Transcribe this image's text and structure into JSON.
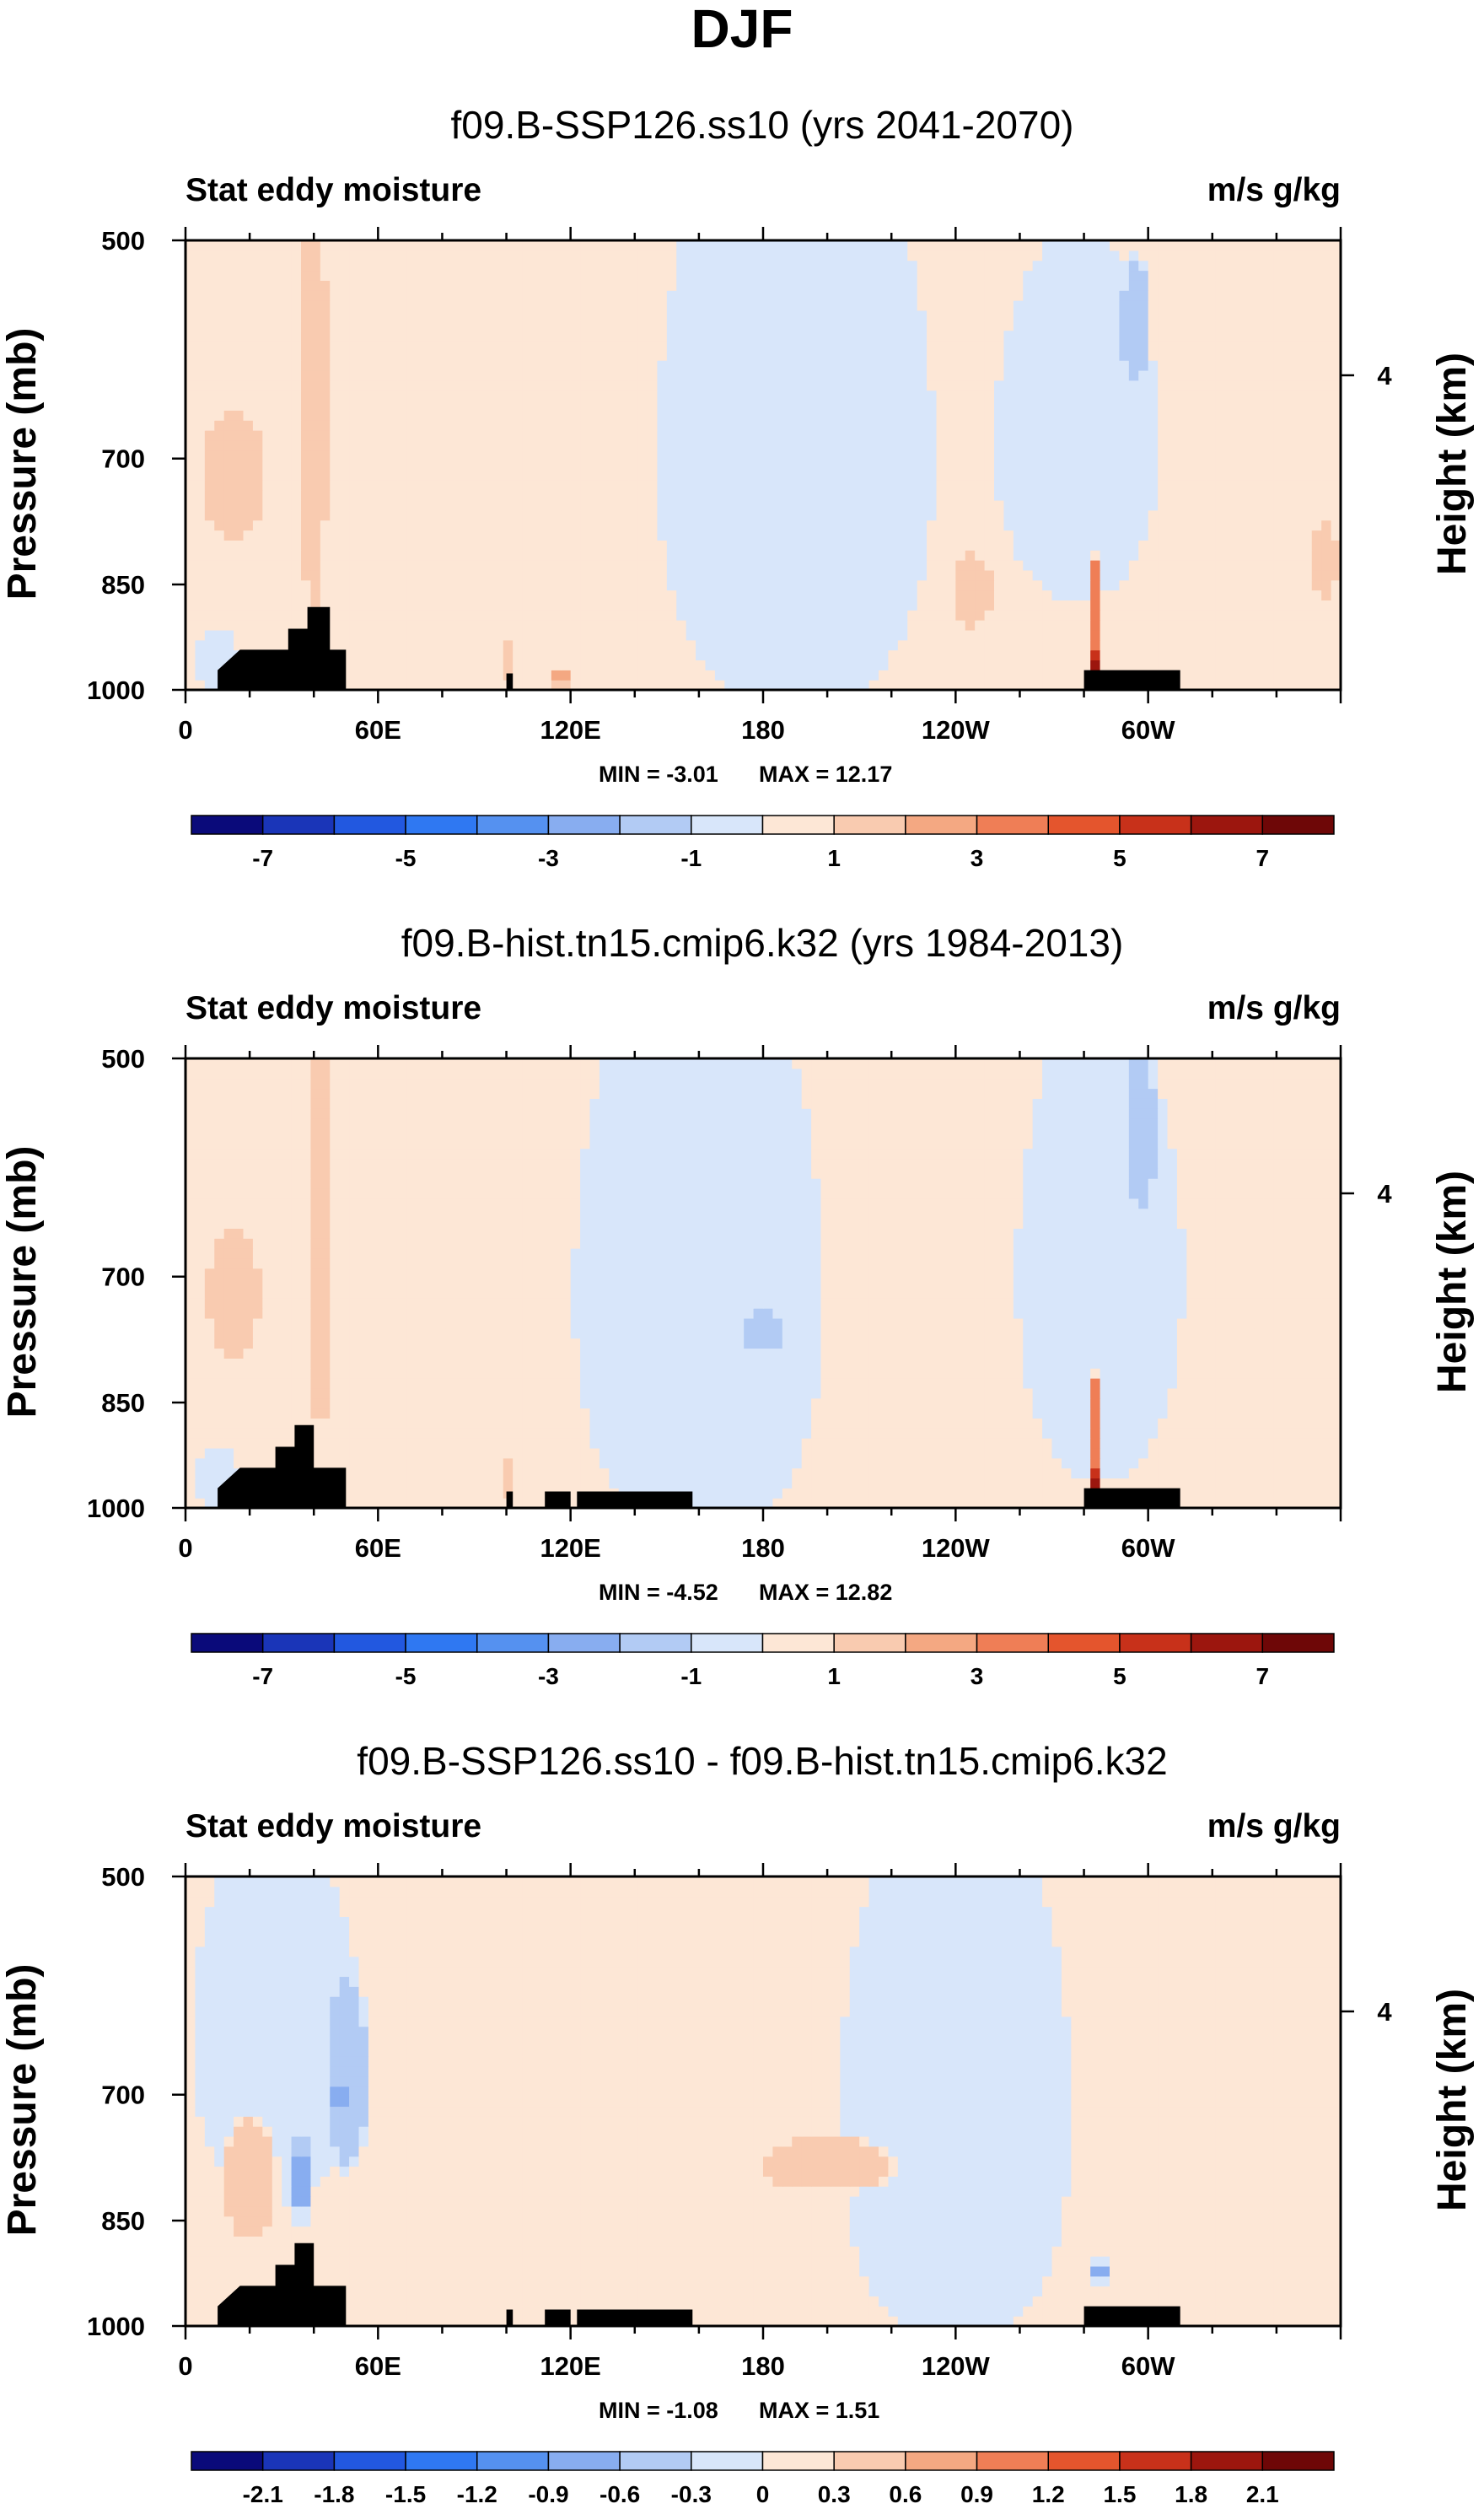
{
  "title": "DJF",
  "colors": {
    "frame": "#000000",
    "terrain": "#000000",
    "diverging": [
      "#0a0a7a",
      "#1a35b8",
      "#2258e0",
      "#2f78f2",
      "#5591f0",
      "#88adf0",
      "#b2cbf4",
      "#d8e6fa",
      "#fde7d6",
      "#f9cbb0",
      "#f4a882",
      "#ef7e56",
      "#e4552d",
      "#c8311a",
      "#9c160e",
      "#6e0707"
    ]
  },
  "chart_data": [
    {
      "type": "heatmap",
      "title": "f09.B-SSP126.ss10 (yrs 2041-2070)",
      "left_label": "Stat eddy moisture",
      "right_label": "m/s g/kg",
      "ylabel": "Pressure (mb)",
      "y2label": "Height (km)",
      "xticks": [
        "0",
        "60E",
        "120E",
        "180",
        "120W",
        "60W"
      ],
      "xtick_lon": [
        0,
        60,
        120,
        180,
        240,
        300
      ],
      "xlim": [
        0,
        360
      ],
      "yticks": [
        "500",
        "700",
        "850",
        "1000"
      ],
      "ytick_p": [
        500,
        700,
        850,
        1000
      ],
      "ylim": [
        1000,
        500
      ],
      "y2ticks": [
        "4"
      ],
      "min_label": "MIN = -3.01",
      "max_label": "MAX = 12.17",
      "min": -3.01,
      "max": 12.17,
      "colorbar_labels": [
        "-7",
        "-5",
        "-3",
        "-1",
        "1",
        "3",
        "5",
        "7"
      ],
      "levels": [
        -7,
        -6,
        -5,
        -4,
        -3,
        -2,
        -1,
        0,
        1,
        2,
        3,
        4,
        5,
        6,
        7
      ],
      "blobs": [
        {
          "lon": 190,
          "p": 700,
          "rx": 50,
          "rp": 400,
          "v": -0.9
        },
        {
          "lon": 278,
          "p": 680,
          "rx": 30,
          "rp": 220,
          "v": -0.9
        },
        {
          "lon": 296,
          "p": 560,
          "rx": 5,
          "rp": 60,
          "v": -1.6
        },
        {
          "lon": 15,
          "p": 720,
          "rx": 12,
          "rp": 90,
          "v": 1.4
        },
        {
          "lon": 40,
          "p": 650,
          "rx": 5,
          "rp": 300,
          "v": 1.3
        },
        {
          "lon": 355,
          "p": 820,
          "rx": 5,
          "rp": 60,
          "v": 1.3
        },
        {
          "lon": 10,
          "p": 960,
          "rx": 8,
          "rp": 60,
          "v": -0.8
        },
        {
          "lon": 283,
          "p": 950,
          "rx": 2,
          "rp": 50,
          "v": 6.5
        },
        {
          "lon": 283,
          "p": 880,
          "rx": 2,
          "rp": 80,
          "v": 3.5
        },
        {
          "lon": 100,
          "p": 960,
          "rx": 2,
          "rp": 40,
          "v": 1.4
        },
        {
          "lon": 117,
          "p": 980,
          "rx": 2,
          "rp": 30,
          "v": 2.5
        },
        {
          "lon": 245,
          "p": 860,
          "rx": 8,
          "rp": 60,
          "v": 1.3
        }
      ],
      "bg": 0.5,
      "terrain": [
        [
          10,
          970
        ],
        [
          17,
          940
        ],
        [
          32,
          940
        ],
        [
          32,
          910
        ],
        [
          38,
          910
        ],
        [
          38,
          880
        ],
        [
          45,
          880
        ],
        [
          45,
          940
        ],
        [
          50,
          940
        ],
        [
          50,
          1000
        ],
        [
          100,
          1000
        ],
        [
          100,
          975
        ],
        [
          102,
          975
        ],
        [
          102,
          1000
        ],
        [
          280,
          1000
        ],
        [
          280,
          970
        ],
        [
          310,
          970
        ],
        [
          310,
          1000
        ],
        [
          10,
          1000
        ]
      ]
    },
    {
      "type": "heatmap",
      "title": "f09.B-hist.tn15.cmip6.k32 (yrs 1984-2013)",
      "left_label": "Stat eddy moisture",
      "right_label": "m/s g/kg",
      "ylabel": "Pressure (mb)",
      "y2label": "Height (km)",
      "xticks": [
        "0",
        "60E",
        "120E",
        "180",
        "120W",
        "60W"
      ],
      "xtick_lon": [
        0,
        60,
        120,
        180,
        240,
        300
      ],
      "xlim": [
        0,
        360
      ],
      "yticks": [
        "500",
        "700",
        "850",
        "1000"
      ],
      "ytick_p": [
        500,
        700,
        850,
        1000
      ],
      "ylim": [
        1000,
        500
      ],
      "y2ticks": [
        "4"
      ],
      "min_label": "MIN = -4.52",
      "max_label": "MAX = 12.82",
      "min": -4.52,
      "max": 12.82,
      "colorbar_labels": [
        "-7",
        "-5",
        "-3",
        "-1",
        "1",
        "3",
        "5",
        "7"
      ],
      "levels": [
        -7,
        -6,
        -5,
        -4,
        -3,
        -2,
        -1,
        0,
        1,
        2,
        3,
        4,
        5,
        6,
        7
      ],
      "blobs": [
        {
          "lon": 160,
          "p": 720,
          "rx": 45,
          "rp": 400,
          "v": -0.9
        },
        {
          "lon": 180,
          "p": 760,
          "rx": 6,
          "rp": 30,
          "v": -1.6
        },
        {
          "lon": 285,
          "p": 700,
          "rx": 30,
          "rp": 300,
          "v": -0.9
        },
        {
          "lon": 298,
          "p": 560,
          "rx": 5,
          "rp": 70,
          "v": -1.6
        },
        {
          "lon": 15,
          "p": 720,
          "rx": 10,
          "rp": 90,
          "v": 1.4
        },
        {
          "lon": 42,
          "p": 650,
          "rx": 5,
          "rp": 300,
          "v": 1.3
        },
        {
          "lon": 283,
          "p": 950,
          "rx": 2,
          "rp": 50,
          "v": 6.5
        },
        {
          "lon": 283,
          "p": 880,
          "rx": 2,
          "rp": 80,
          "v": 3.5
        },
        {
          "lon": 100,
          "p": 960,
          "rx": 2,
          "rp": 40,
          "v": 1.4
        },
        {
          "lon": 10,
          "p": 960,
          "rx": 8,
          "rp": 60,
          "v": -0.8
        }
      ],
      "bg": 0.5,
      "terrain": [
        [
          10,
          970
        ],
        [
          17,
          940
        ],
        [
          28,
          940
        ],
        [
          28,
          910
        ],
        [
          34,
          910
        ],
        [
          34,
          880
        ],
        [
          40,
          880
        ],
        [
          40,
          940
        ],
        [
          50,
          940
        ],
        [
          50,
          1000
        ],
        [
          100,
          1000
        ],
        [
          100,
          975
        ],
        [
          102,
          975
        ],
        [
          102,
          1000
        ],
        [
          112,
          1000
        ],
        [
          112,
          975
        ],
        [
          120,
          975
        ],
        [
          120,
          1000
        ],
        [
          122,
          1000
        ],
        [
          122,
          975
        ],
        [
          158,
          975
        ],
        [
          158,
          1000
        ],
        [
          280,
          1000
        ],
        [
          280,
          970
        ],
        [
          310,
          970
        ],
        [
          310,
          1000
        ],
        [
          10,
          1000
        ]
      ]
    },
    {
      "type": "heatmap",
      "title": "f09.B-SSP126.ss10 - f09.B-hist.tn15.cmip6.k32",
      "left_label": "Stat eddy moisture",
      "right_label": "m/s g/kg",
      "ylabel": "Pressure (mb)",
      "y2label": "Height (km)",
      "xticks": [
        "0",
        "60E",
        "120E",
        "180",
        "120W",
        "60W"
      ],
      "xtick_lon": [
        0,
        60,
        120,
        180,
        240,
        300
      ],
      "xlim": [
        0,
        360
      ],
      "yticks": [
        "500",
        "700",
        "850",
        "1000"
      ],
      "ytick_p": [
        500,
        700,
        850,
        1000
      ],
      "ylim": [
        1000,
        500
      ],
      "y2ticks": [
        "4"
      ],
      "min_label": "MIN = -1.08",
      "max_label": "MAX =  1.51",
      "min": -1.08,
      "max": 1.51,
      "colorbar_labels": [
        "-2.1",
        "-1.8",
        "-1.5",
        "-1.2",
        "-0.9",
        "-0.6",
        "-0.3",
        "0",
        "0.3",
        "0.6",
        "0.9",
        "1.2",
        "1.5",
        "1.8",
        "2.1"
      ],
      "levels": [
        -2.1,
        -1.8,
        -1.5,
        -1.2,
        -0.9,
        -0.6,
        -0.3,
        0,
        0.3,
        0.6,
        0.9,
        1.2,
        1.5,
        1.8,
        2.1
      ],
      "blobs": [
        {
          "lon": 28,
          "p": 640,
          "rx": 32,
          "rp": 240,
          "v": -0.12
        },
        {
          "lon": 50,
          "p": 680,
          "rx": 8,
          "rp": 120,
          "v": -0.45
        },
        {
          "lon": 48,
          "p": 700,
          "rx": 2,
          "rp": 25,
          "v": -0.75
        },
        {
          "lon": 36,
          "p": 800,
          "rx": 2,
          "rp": 100,
          "v": -0.75
        },
        {
          "lon": 240,
          "p": 720,
          "rx": 45,
          "rp": 400,
          "v": -0.12
        },
        {
          "lon": 20,
          "p": 800,
          "rx": 10,
          "rp": 90,
          "v": 0.35
        },
        {
          "lon": 200,
          "p": 780,
          "rx": 25,
          "rp": 40,
          "v": 0.35
        },
        {
          "lon": 285,
          "p": 920,
          "rx": 2,
          "rp": 40,
          "v": -0.75
        }
      ],
      "bg": 0.15,
      "terrain": [
        [
          10,
          970
        ],
        [
          17,
          940
        ],
        [
          28,
          940
        ],
        [
          28,
          910
        ],
        [
          34,
          910
        ],
        [
          34,
          880
        ],
        [
          40,
          880
        ],
        [
          40,
          940
        ],
        [
          50,
          940
        ],
        [
          50,
          1000
        ],
        [
          100,
          1000
        ],
        [
          100,
          975
        ],
        [
          102,
          975
        ],
        [
          102,
          1000
        ],
        [
          112,
          1000
        ],
        [
          112,
          975
        ],
        [
          120,
          975
        ],
        [
          120,
          1000
        ],
        [
          122,
          1000
        ],
        [
          122,
          975
        ],
        [
          158,
          975
        ],
        [
          158,
          1000
        ],
        [
          280,
          1000
        ],
        [
          280,
          970
        ],
        [
          310,
          970
        ],
        [
          310,
          1000
        ],
        [
          10,
          1000
        ]
      ]
    }
  ]
}
